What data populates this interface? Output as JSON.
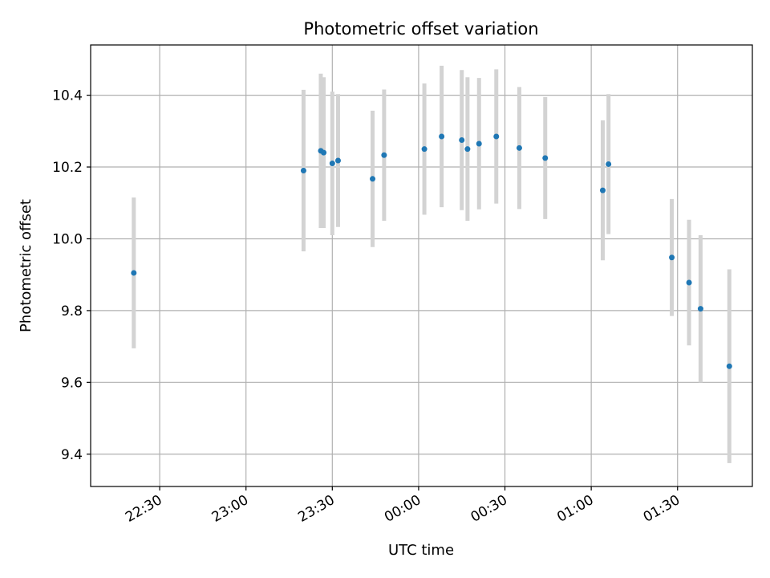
{
  "chart_data": {
    "type": "scatter",
    "title": "Photometric offset variation",
    "xlabel": "UTC time",
    "ylabel": "Photometric offset",
    "x_axis_kind": "time",
    "x_ticks": [
      "22:30",
      "23:00",
      "23:30",
      "00:00",
      "00:30",
      "01:00",
      "01:30"
    ],
    "x_tick_values_minutes": [
      1350,
      1380,
      1410,
      1440,
      1470,
      1500,
      1530
    ],
    "xlim_minutes": [
      1326,
      1556
    ],
    "y_ticks": [
      "9.4",
      "9.6",
      "9.8",
      "10.0",
      "10.2",
      "10.4"
    ],
    "y_tick_values": [
      9.4,
      9.6,
      9.8,
      10.0,
      10.2,
      10.4
    ],
    "ylim": [
      9.31,
      10.54
    ],
    "grid": true,
    "marker_color": "#1f77b4",
    "errorbar_color": "#d3d3d3",
    "series": [
      {
        "points": [
          {
            "x": "22:21",
            "y": 9.905,
            "err": 0.21
          },
          {
            "x": "23:20",
            "y": 10.19,
            "err": 0.225
          },
          {
            "x": "23:26",
            "y": 10.245,
            "err": 0.215
          },
          {
            "x": "23:27",
            "y": 10.24,
            "err": 0.21
          },
          {
            "x": "23:30",
            "y": 10.21,
            "err": 0.2
          },
          {
            "x": "23:32",
            "y": 10.218,
            "err": 0.185
          },
          {
            "x": "23:44",
            "y": 10.167,
            "err": 0.19
          },
          {
            "x": "23:48",
            "y": 10.233,
            "err": 0.183
          },
          {
            "x": "00:02",
            "y": 10.25,
            "err": 0.183
          },
          {
            "x": "00:08",
            "y": 10.285,
            "err": 0.197
          },
          {
            "x": "00:15",
            "y": 10.275,
            "err": 0.195
          },
          {
            "x": "00:17",
            "y": 10.25,
            "err": 0.2
          },
          {
            "x": "00:21",
            "y": 10.265,
            "err": 0.183
          },
          {
            "x": "00:27",
            "y": 10.285,
            "err": 0.187
          },
          {
            "x": "00:35",
            "y": 10.253,
            "err": 0.17
          },
          {
            "x": "00:44",
            "y": 10.225,
            "err": 0.17
          },
          {
            "x": "01:04",
            "y": 10.135,
            "err": 0.195
          },
          {
            "x": "01:06",
            "y": 10.208,
            "err": 0.195
          },
          {
            "x": "01:28",
            "y": 9.948,
            "err": 0.163
          },
          {
            "x": "01:34",
            "y": 9.878,
            "err": 0.175
          },
          {
            "x": "01:38",
            "y": 9.805,
            "err": 0.205
          },
          {
            "x": "01:48",
            "y": 9.645,
            "err": 0.27
          }
        ]
      }
    ]
  }
}
